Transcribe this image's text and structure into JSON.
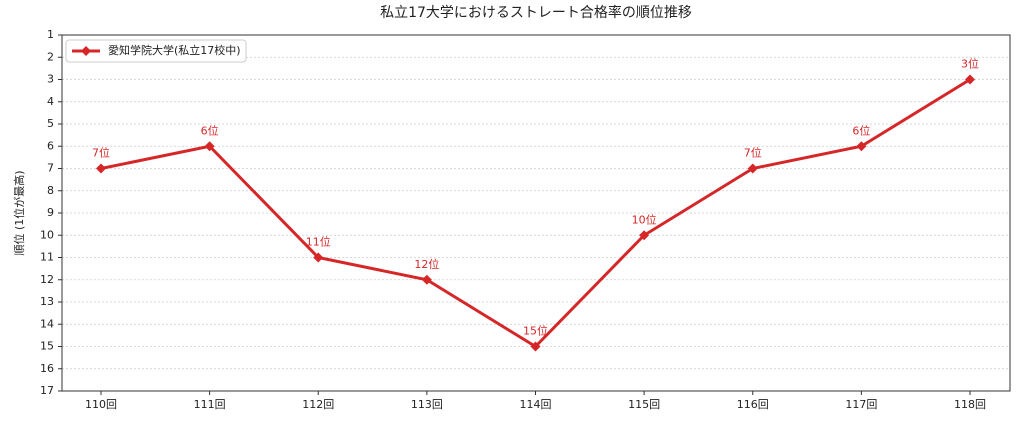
{
  "chart_data": {
    "type": "line",
    "title": "私立17大学におけるストレート合格率の順位推移",
    "y_label": "順位 (1位が最高)",
    "categories": [
      "110回",
      "111回",
      "112回",
      "113回",
      "114回",
      "115回",
      "116回",
      "117回",
      "118回"
    ],
    "series": [
      {
        "name": "愛知学院大学(私立17校中)",
        "color": "#d62728",
        "values": [
          7,
          6,
          11,
          12,
          15,
          10,
          7,
          6,
          3
        ],
        "value_labels": [
          "7位",
          "6位",
          "11位",
          "12位",
          "15位",
          "10位",
          "7位",
          "6位",
          "3位"
        ]
      }
    ],
    "ylim": [
      17,
      1
    ],
    "yticks": [
      1,
      2,
      3,
      4,
      5,
      6,
      7,
      8,
      9,
      10,
      11,
      12,
      13,
      14,
      15,
      16,
      17
    ],
    "grid": true,
    "legend": "upper-left",
    "marker": "diamond"
  }
}
